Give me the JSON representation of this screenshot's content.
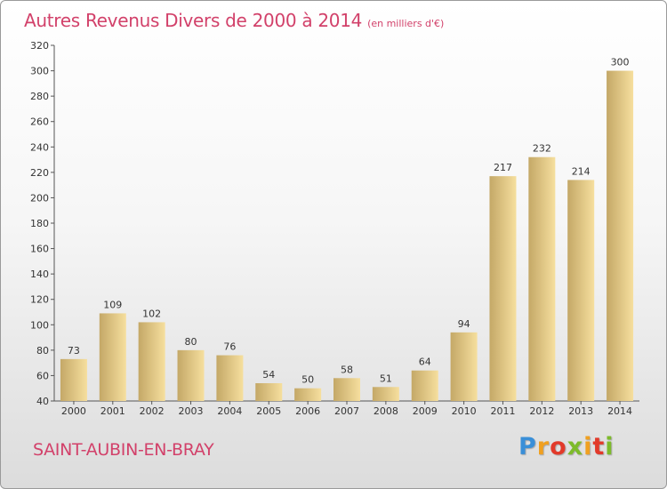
{
  "header": {
    "title": "Autres Revenus Divers de 2000 à 2014",
    "subtitle": "(en milliers d'€)"
  },
  "footer": {
    "commune": "SAINT-AUBIN-EN-BRAY",
    "logo_letters": [
      "P",
      "r",
      "o",
      "x",
      "i",
      "t",
      "i"
    ]
  },
  "colors": {
    "title": "#d2416a",
    "bar_light": "#f6df9e",
    "bar_dark": "#c4a867",
    "logo": [
      "#3a8fd8",
      "#f0a020",
      "#e23a2a",
      "#7dbb2a"
    ]
  },
  "chart_data": {
    "type": "bar",
    "categories": [
      "2000",
      "2001",
      "2002",
      "2003",
      "2004",
      "2005",
      "2006",
      "2007",
      "2008",
      "2009",
      "2010",
      "2011",
      "2012",
      "2013",
      "2014"
    ],
    "values": [
      73,
      109,
      102,
      80,
      76,
      54,
      50,
      58,
      51,
      64,
      94,
      217,
      232,
      214,
      300
    ],
    "ylim": [
      40,
      320
    ],
    "yticks": [
      40,
      60,
      80,
      100,
      120,
      140,
      160,
      180,
      200,
      220,
      240,
      260,
      280,
      300,
      320
    ],
    "grid": false,
    "legend": "none"
  }
}
